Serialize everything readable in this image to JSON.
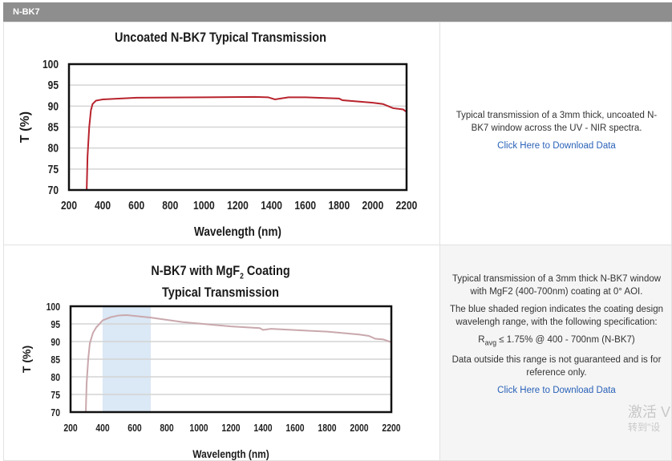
{
  "section_title": "N-BK7",
  "rows": [
    {
      "description": [
        "Typical transmission of a 3mm thick, uncoated N-BK7 window across the UV - NIR spectra."
      ],
      "download_label": "Click Here to Download Data"
    },
    {
      "description": [
        "Typical transmission of a 3mm thick N-BK7 window with MgF2 (400-700nm) coating at 0° AOI.",
        "The blue shaded region indicates the coating design wavelengh range, with the following specification:"
      ],
      "spec": {
        "symbol": "R",
        "subscript": "avg",
        "text": " ≤ 1.75% @ 400 - 700nm (N-BK7)"
      },
      "note": "Data outside this range is not guaranteed and is for reference only.",
      "download_label": "Click Here to Download Data"
    }
  ],
  "watermark": {
    "line1": "激活 V",
    "line2": "转到\"设"
  },
  "chart_data": [
    {
      "type": "line",
      "title": "Uncoated N-BK7 Typical Transmission",
      "xlabel": "Wavelength (nm)",
      "ylabel": "T (%)",
      "xlim": [
        200,
        2200
      ],
      "ylim": [
        70,
        100
      ],
      "xticks": [
        200,
        400,
        600,
        800,
        1000,
        1200,
        1400,
        1600,
        1800,
        2000,
        2200
      ],
      "yticks": [
        70,
        75,
        80,
        85,
        90,
        95,
        100
      ],
      "grid": "horizontal",
      "color": "#b8232d",
      "x": [
        305,
        310,
        320,
        330,
        340,
        360,
        400,
        600,
        1000,
        1300,
        1380,
        1420,
        1500,
        1600,
        1800,
        1820,
        2000,
        2060,
        2120,
        2180,
        2200
      ],
      "y": [
        70,
        78,
        85,
        89,
        90.5,
        91.3,
        91.6,
        92,
        92.1,
        92.2,
        92.1,
        91.6,
        92.1,
        92.1,
        91.8,
        91.4,
        90.8,
        90.5,
        89.5,
        89.2,
        88.6
      ]
    },
    {
      "type": "line",
      "title": "N-BK7 with MgF",
      "title_sub": "2",
      "title_rest": " Coating",
      "title_line2": "Typical Transmission",
      "xlabel": "Wavelength (nm)",
      "ylabel": "T (%)",
      "xlim": [
        200,
        2200
      ],
      "ylim": [
        70,
        100
      ],
      "xticks": [
        200,
        400,
        600,
        800,
        1000,
        1200,
        1400,
        1600,
        1800,
        2000,
        2200
      ],
      "yticks": [
        70,
        75,
        80,
        85,
        90,
        95,
        100
      ],
      "grid": "horizontal",
      "color": "#c9a8ad",
      "shaded_region": [
        400,
        700
      ],
      "shade_color": "#dbe8f5",
      "x": [
        295,
        300,
        310,
        320,
        340,
        360,
        400,
        450,
        500,
        550,
        700,
        900,
        1200,
        1380,
        1400,
        1450,
        1800,
        2000,
        2060,
        2100,
        2150,
        2200
      ],
      "y": [
        70,
        78,
        85,
        89.5,
        92.5,
        94,
        96,
        96.9,
        97.4,
        97.5,
        96.8,
        95.5,
        94.3,
        93.8,
        93.3,
        93.6,
        92.8,
        92,
        91.6,
        90.8,
        90.6,
        89.8
      ]
    }
  ]
}
